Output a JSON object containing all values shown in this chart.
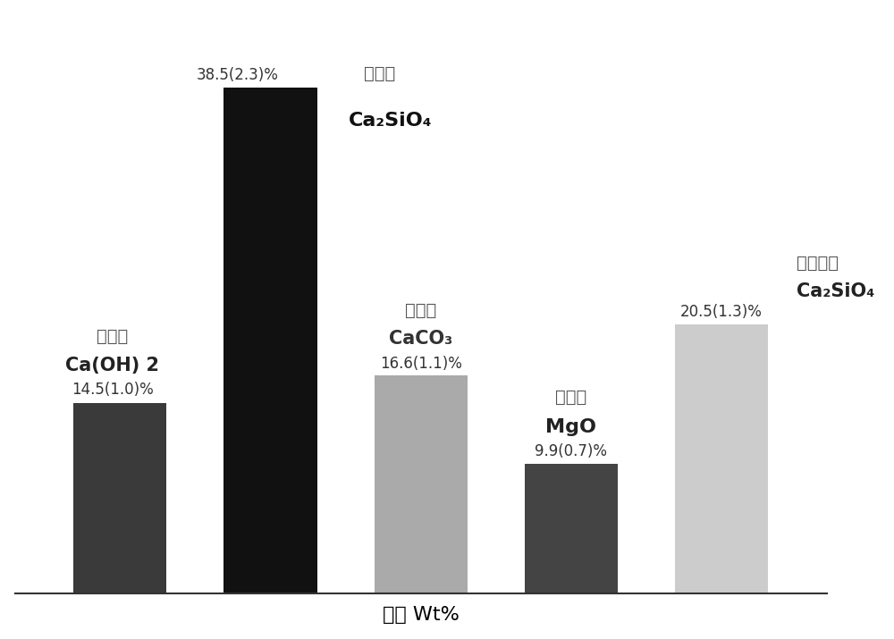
{
  "bars": [
    {
      "value": 14.5,
      "color": "#3a3a3a",
      "label_cn": "翟钒石",
      "label_formula": "Ca(OH) 2",
      "label_pct": "14.5(1.0)%",
      "label_side": "left"
    },
    {
      "value": 38.5,
      "color": "#111111",
      "label_cn": "橄榄石",
      "label_formula": "Ca₂SiO₄",
      "label_pct": "38.5(2.3)%",
      "label_side": "right"
    },
    {
      "value": 16.6,
      "color": "#aaaaaa",
      "label_cn": "方解石",
      "label_formula": "CaCO₃",
      "label_pct": "16.6(1.1)%",
      "label_side": "center"
    },
    {
      "value": 9.9,
      "color": "#444444",
      "label_cn": "方镁石",
      "label_formula": "MgO",
      "label_pct": "9.9(0.7)%",
      "label_side": "center"
    },
    {
      "value": 20.5,
      "color": "#cccccc",
      "label_cn": "斜硅钒石",
      "label_formula": "Ca₂SiO₄",
      "label_pct": "20.5(1.3)%",
      "label_side": "right"
    }
  ],
  "xlabel": "含量 Wt%",
  "background_color": "#ffffff",
  "bar_width": 0.62,
  "ylim": [
    0,
    44
  ]
}
